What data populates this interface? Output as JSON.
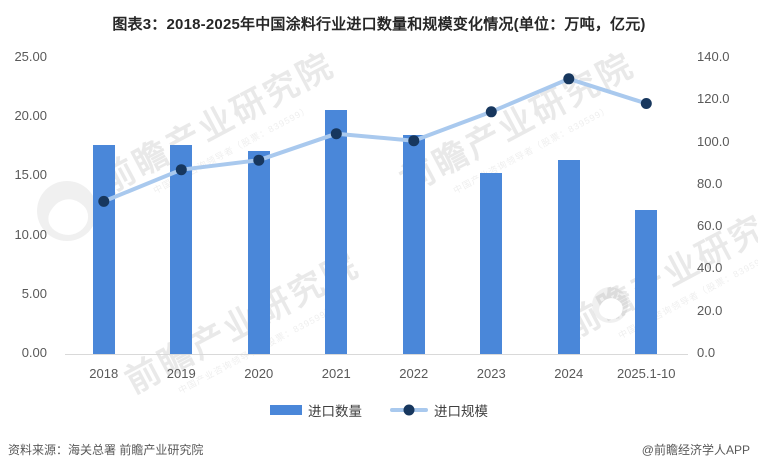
{
  "chart_data": {
    "type": "bar+line",
    "title": "图表3：2018-2025年中国涂料行业进口数量和规模变化情况(单位：万吨，亿元)",
    "categories": [
      "2018",
      "2019",
      "2020",
      "2021",
      "2022",
      "2023",
      "2024",
      "2025.1-10"
    ],
    "series": [
      {
        "name": "进口数量",
        "type": "bar",
        "axis": "left",
        "unit": "万吨",
        "values": [
          17.6,
          17.6,
          17.1,
          20.5,
          18.4,
          15.2,
          16.3,
          12.1
        ]
      },
      {
        "name": "进口规模",
        "type": "line",
        "axis": "right",
        "unit": "亿元",
        "values": [
          71.7,
          86.7,
          91.2,
          103.7,
          100.4,
          114.1,
          129.7,
          118.0
        ]
      }
    ],
    "left_axis": {
      "min": 0,
      "max": 25,
      "ticks": [
        "0.00",
        "5.00",
        "10.00",
        "15.00",
        "20.00",
        "25.00"
      ]
    },
    "right_axis": {
      "min": 0,
      "max": 140,
      "ticks": [
        "0.0",
        "20.0",
        "40.0",
        "60.0",
        "80.0",
        "100.0",
        "120.0",
        "140.0"
      ]
    },
    "grid": false,
    "legend_position": "bottom"
  },
  "colors": {
    "bar": "#4A87D9",
    "line": "#A9C9EE",
    "marker": "#17375E",
    "axis_text": "#595959",
    "title_text": "#262626",
    "legend_text": "#404040",
    "baseline": "#D9D9D9",
    "footer_text": "#595959"
  },
  "legend": [
    {
      "label": "进口数量"
    },
    {
      "label": "进口规模"
    }
  ],
  "watermark": {
    "text": "前瞻产业研究院",
    "subtext": "中国产业咨询领导者（股票：839599）"
  },
  "footer": {
    "source": "资料来源：海关总署 前瞻产业研究院",
    "credit": "@前瞻经济学人APP"
  }
}
